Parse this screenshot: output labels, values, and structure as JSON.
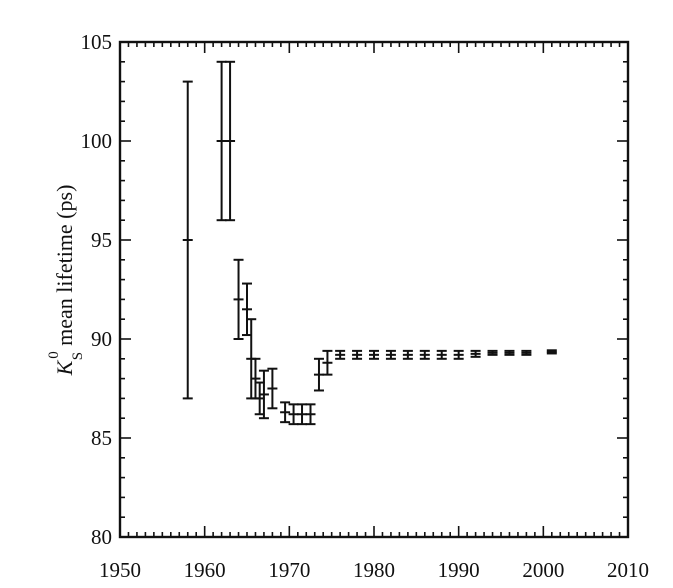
{
  "chart_data": {
    "type": "scatter",
    "xlabel": "",
    "ylabel": "K_S^0 mean lifetime (ps)",
    "ylabel_parts": {
      "symbol": "K",
      "superscript": "0",
      "subscript": "S",
      "rest": "mean lifetime (ps)"
    },
    "xlim": [
      1950,
      2010
    ],
    "ylim": [
      80,
      105
    ],
    "xticks": [
      1950,
      1960,
      1970,
      1980,
      1990,
      2000,
      2010
    ],
    "yticks": [
      80,
      85,
      90,
      95,
      100,
      105
    ],
    "grid": false,
    "color": "#111111",
    "points": [
      {
        "x": 1958,
        "y": 95.0,
        "err": 8.0
      },
      {
        "x": 1962,
        "y": 100.0,
        "err": 4.0
      },
      {
        "x": 1963,
        "y": 100.0,
        "err": 4.0
      },
      {
        "x": 1964,
        "y": 92.0,
        "err": 2.0
      },
      {
        "x": 1965,
        "y": 91.5,
        "err": 1.3
      },
      {
        "x": 1965.5,
        "y": 89.0,
        "err": 2.0
      },
      {
        "x": 1966,
        "y": 88.0,
        "err": 1.0
      },
      {
        "x": 1966.5,
        "y": 87.0,
        "err": 0.8
      },
      {
        "x": 1967,
        "y": 87.2,
        "err": 1.2
      },
      {
        "x": 1968,
        "y": 87.5,
        "err": 1.0
      },
      {
        "x": 1969.5,
        "y": 86.3,
        "err": 0.5
      },
      {
        "x": 1970.5,
        "y": 86.2,
        "err": 0.5
      },
      {
        "x": 1971.5,
        "y": 86.2,
        "err": 0.5
      },
      {
        "x": 1972.5,
        "y": 86.2,
        "err": 0.5
      },
      {
        "x": 1973.5,
        "y": 88.2,
        "err": 0.8
      },
      {
        "x": 1974.5,
        "y": 88.8,
        "err": 0.6
      },
      {
        "x": 1976,
        "y": 89.2,
        "err": 0.2
      },
      {
        "x": 1978,
        "y": 89.2,
        "err": 0.2
      },
      {
        "x": 1980,
        "y": 89.2,
        "err": 0.2
      },
      {
        "x": 1982,
        "y": 89.2,
        "err": 0.2
      },
      {
        "x": 1984,
        "y": 89.2,
        "err": 0.2
      },
      {
        "x": 1986,
        "y": 89.2,
        "err": 0.2
      },
      {
        "x": 1988,
        "y": 89.2,
        "err": 0.2
      },
      {
        "x": 1990,
        "y": 89.2,
        "err": 0.2
      },
      {
        "x": 1992,
        "y": 89.25,
        "err": 0.15
      },
      {
        "x": 1994,
        "y": 89.3,
        "err": 0.1
      },
      {
        "x": 1996,
        "y": 89.3,
        "err": 0.1
      },
      {
        "x": 1998,
        "y": 89.3,
        "err": 0.1
      },
      {
        "x": 2001,
        "y": 89.35,
        "err": 0.08
      }
    ]
  }
}
